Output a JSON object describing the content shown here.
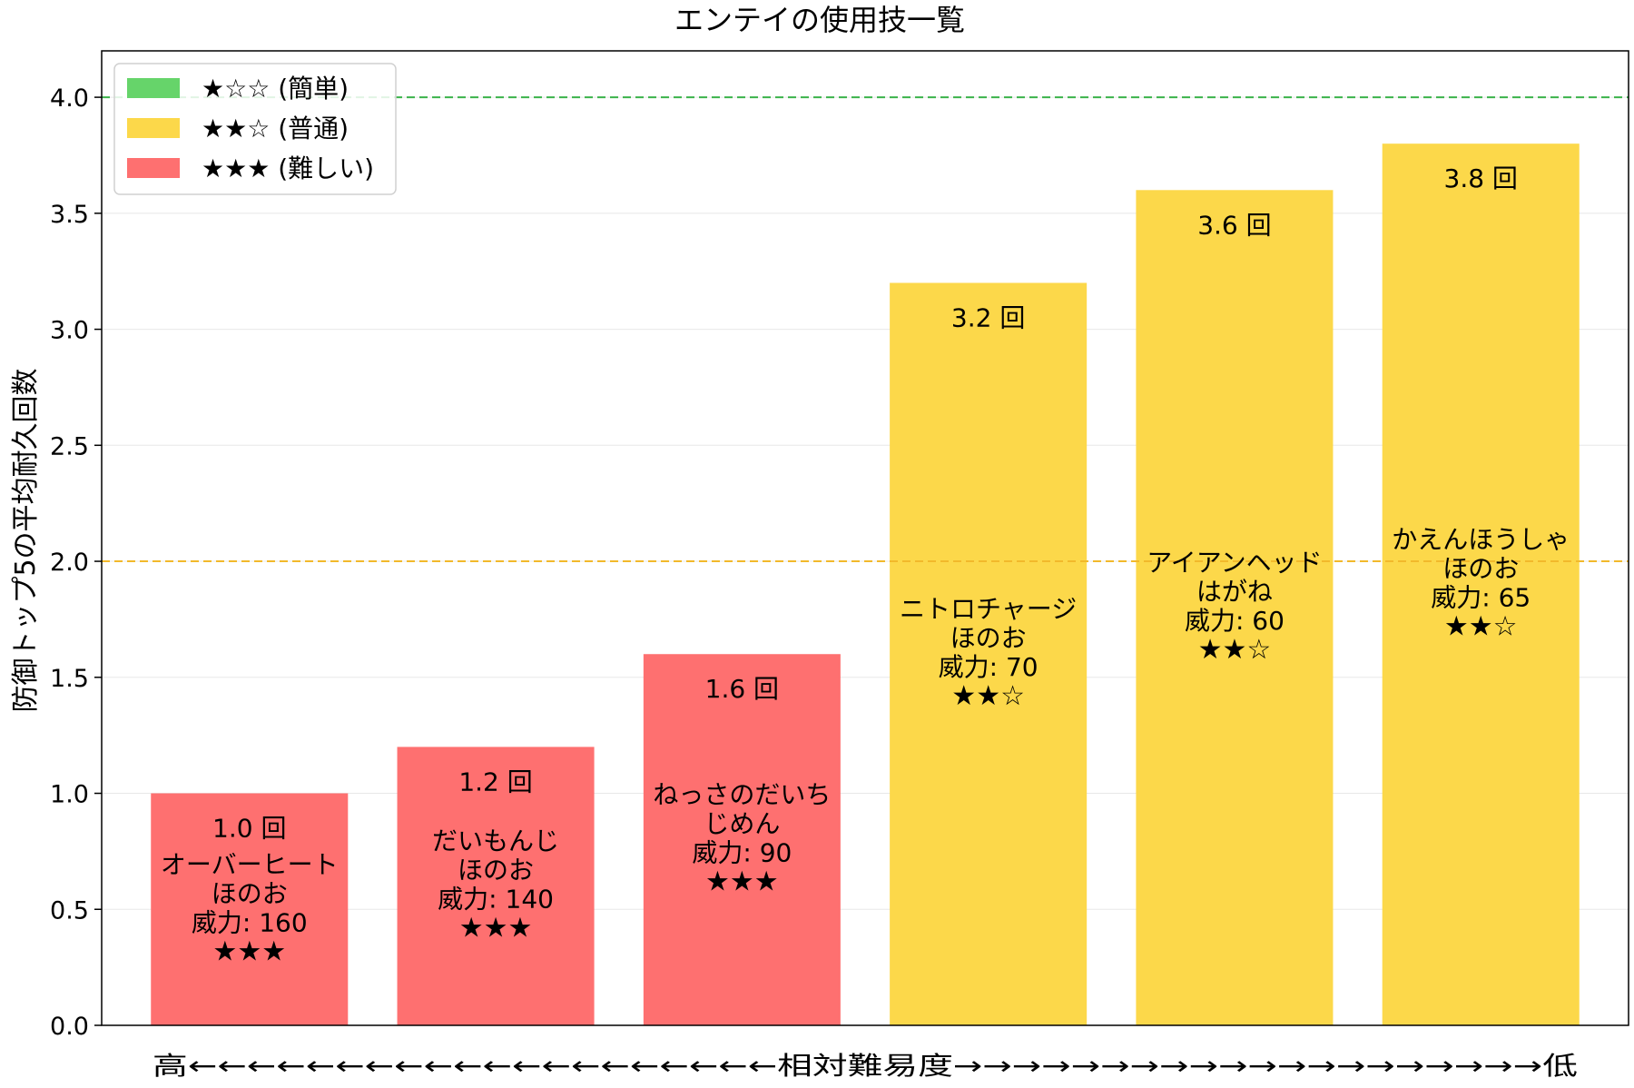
{
  "chart_data": {
    "type": "bar",
    "title": "エンテイの使用技一覧",
    "ylabel": "防御トップ5の平均耐久回数",
    "xlabel": "高←←←←←←←←←←←←←←←←←←←←相対難易度→→→→→→→→→→→→→→→→→→→→低",
    "ylim": [
      0,
      4.2
    ],
    "yticks": [
      "0.0",
      "0.5",
      "1.0",
      "1.5",
      "2.0",
      "2.5",
      "3.0",
      "3.5",
      "4.0"
    ],
    "grid": "horizontal",
    "legend_position": "top-left",
    "legend": [
      {
        "label": "★☆☆ (簡単)",
        "color": "#66d46a"
      },
      {
        "label": "★★☆ (普通)",
        "color": "#fcd84a"
      },
      {
        "label": "★★★ (難しい)",
        "color": "#fe7070"
      }
    ],
    "reference_lines": [
      {
        "y": 4.0,
        "color": "#3bb34a"
      },
      {
        "y": 2.0,
        "color": "#f2b92b"
      }
    ],
    "bars": [
      {
        "value": 1.0,
        "value_label": "1.0 回",
        "name": "オーバーヒート",
        "type": "ほのお",
        "power": "威力: 160",
        "stars": "★★★",
        "color": "#fe7070"
      },
      {
        "value": 1.2,
        "value_label": "1.2 回",
        "name": "だいもんじ",
        "type": "ほのお",
        "power": "威力: 140",
        "stars": "★★★",
        "color": "#fe7070"
      },
      {
        "value": 1.6,
        "value_label": "1.6 回",
        "name": "ねっさのだいち",
        "name2": "じめん",
        "power": "威力: 90",
        "stars": "★★★",
        "color": "#fe7070"
      },
      {
        "value": 3.2,
        "value_label": "3.2 回",
        "name": "ニトロチャージ",
        "type": "ほのお",
        "power": "威力: 70",
        "stars": "★★☆",
        "color": "#fcd84a"
      },
      {
        "value": 3.6,
        "value_label": "3.6 回",
        "name": "アイアンヘッド",
        "type": "はがね",
        "power": "威力: 60",
        "stars": "★★☆",
        "color": "#fcd84a"
      },
      {
        "value": 3.8,
        "value_label": "3.8 回",
        "name": "かえんほうしゃ",
        "type": "ほのお",
        "power": "威力: 65",
        "stars": "★★☆",
        "color": "#fcd84a"
      }
    ]
  }
}
